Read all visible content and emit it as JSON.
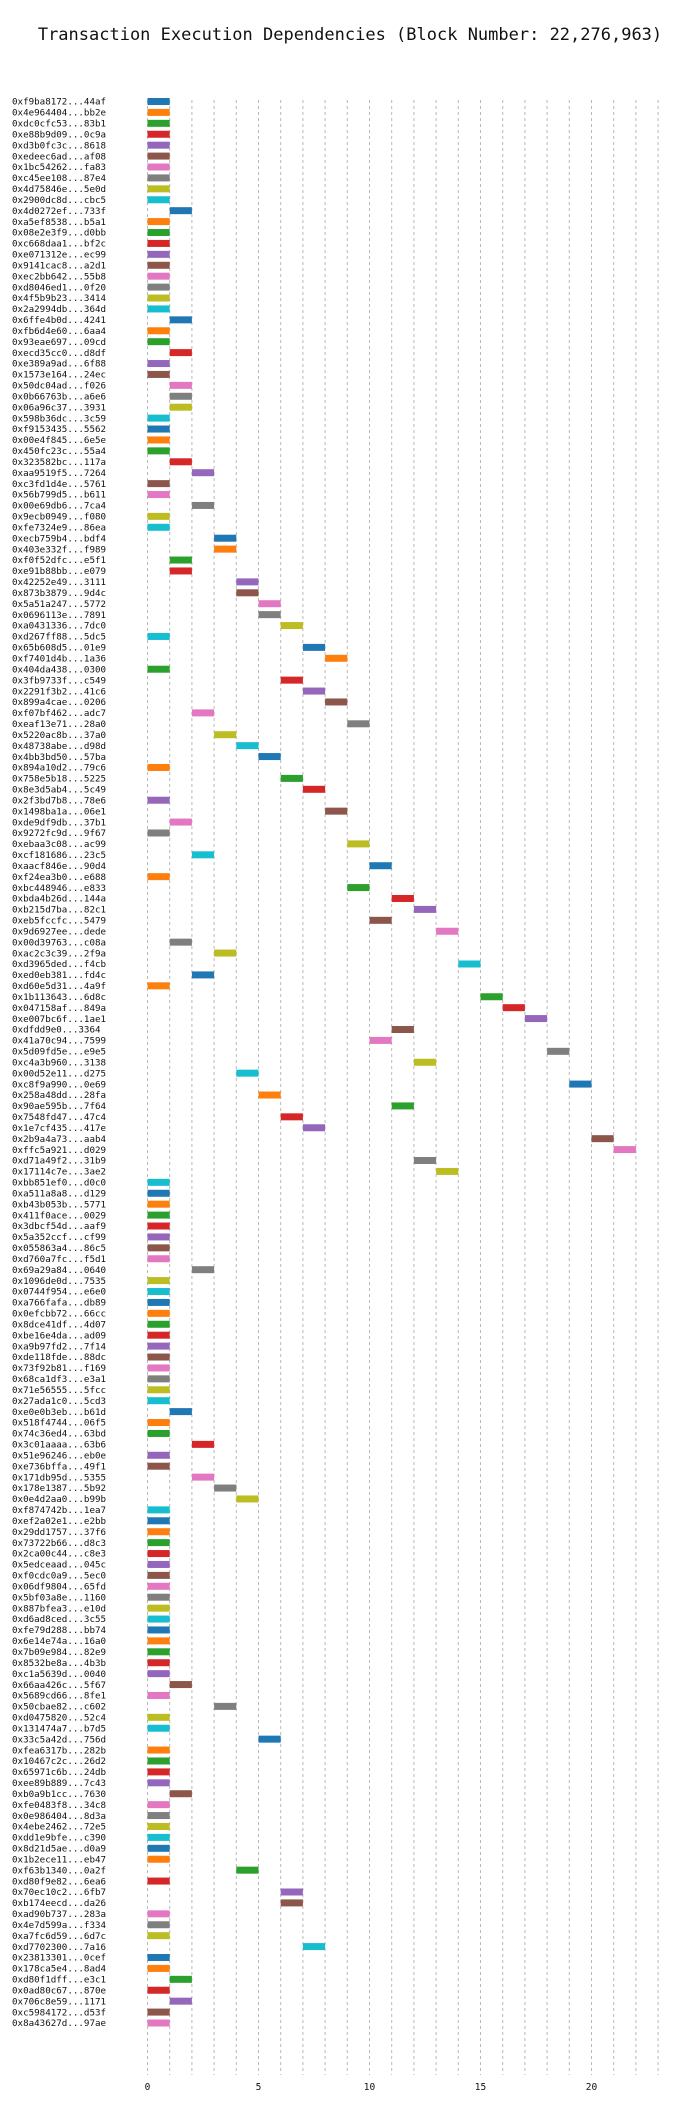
{
  "chart_data": {
    "type": "gantt",
    "title": "Transaction Execution Dependencies (Block Number: 22,276,963)",
    "xlabel": "",
    "ylabel": "",
    "xlim": [
      -0.6,
      23
    ],
    "xticks": [
      0,
      5,
      10,
      15,
      20
    ],
    "grid": "x dashed vertical",
    "bar_width": 1,
    "palette": [
      "#1f77b4",
      "#ff7f0e",
      "#2ca02c",
      "#d62728",
      "#9467bd",
      "#8c564b",
      "#e377c2",
      "#7f7f7f",
      "#bcbd22",
      "#17becf"
    ],
    "transactions": [
      {
        "label": "0xf9ba8172...44af",
        "start": 0
      },
      {
        "label": "0x4e964404...bb2e",
        "start": 0
      },
      {
        "label": "0xdc0cfc53...83b1",
        "start": 0
      },
      {
        "label": "0xe88b9d09...0c9a",
        "start": 0
      },
      {
        "label": "0xd3b0fc3c...8618",
        "start": 0
      },
      {
        "label": "0xedeec6ad...af08",
        "start": 0
      },
      {
        "label": "0x1bc54262...fa83",
        "start": 0
      },
      {
        "label": "0xc45ee108...87e4",
        "start": 0
      },
      {
        "label": "0x4d75846e...5e0d",
        "start": 0
      },
      {
        "label": "0x2900dc8d...cbc5",
        "start": 0
      },
      {
        "label": "0x4d0272ef...733f",
        "start": 1
      },
      {
        "label": "0xa5ef8538...b5a1",
        "start": 0
      },
      {
        "label": "0x08e2e3f9...d0bb",
        "start": 0
      },
      {
        "label": "0xc668daa1...bf2c",
        "start": 0
      },
      {
        "label": "0xe071312e...ec99",
        "start": 0
      },
      {
        "label": "0x9141cac8...a2d1",
        "start": 0
      },
      {
        "label": "0xec2bb642...55b8",
        "start": 0
      },
      {
        "label": "0xd8046ed1...0f20",
        "start": 0
      },
      {
        "label": "0x4f5b9b23...3414",
        "start": 0
      },
      {
        "label": "0x2a2994db...364d",
        "start": 0
      },
      {
        "label": "0x6ffe4b0d...4241",
        "start": 1
      },
      {
        "label": "0xfb6d4e60...6aa4",
        "start": 0
      },
      {
        "label": "0x93eae697...09cd",
        "start": 0
      },
      {
        "label": "0xecd35cc0...d8df",
        "start": 1
      },
      {
        "label": "0xe389a9ad...6f88",
        "start": 0
      },
      {
        "label": "0x1573e164...24ec",
        "start": 0
      },
      {
        "label": "0x50dc04ad...f026",
        "start": 1
      },
      {
        "label": "0x0b66763b...a6e6",
        "start": 1
      },
      {
        "label": "0x06a96c37...3931",
        "start": 1
      },
      {
        "label": "0x598b36dc...3c59",
        "start": 0
      },
      {
        "label": "0xf9153435...5562",
        "start": 0
      },
      {
        "label": "0x00e4f845...6e5e",
        "start": 0
      },
      {
        "label": "0x450fc23c...55a4",
        "start": 0
      },
      {
        "label": "0x323582bc...117a",
        "start": 1
      },
      {
        "label": "0xaa9519f5...7264",
        "start": 2
      },
      {
        "label": "0xc3fd1d4e...5761",
        "start": 0
      },
      {
        "label": "0x56b799d5...b611",
        "start": 0
      },
      {
        "label": "0x00e69db6...7ca4",
        "start": 2
      },
      {
        "label": "0x9ecb0949...f080",
        "start": 0
      },
      {
        "label": "0xfe7324e9...86ea",
        "start": 0
      },
      {
        "label": "0xecb759b4...bdf4",
        "start": 3
      },
      {
        "label": "0x403e332f...f989",
        "start": 3
      },
      {
        "label": "0xf0f52dfc...e5f1",
        "start": 1
      },
      {
        "label": "0xe91b88bb...e079",
        "start": 1
      },
      {
        "label": "0x42252e49...3111",
        "start": 4
      },
      {
        "label": "0x873b3879...9d4c",
        "start": 4
      },
      {
        "label": "0x5a51a247...5772",
        "start": 5
      },
      {
        "label": "0x0696113e...7891",
        "start": 5
      },
      {
        "label": "0xa0431336...7dc0",
        "start": 6
      },
      {
        "label": "0xd267ff88...5dc5",
        "start": 0
      },
      {
        "label": "0x65b608d5...01e9",
        "start": 7
      },
      {
        "label": "0xf7401d4b...1a36",
        "start": 8
      },
      {
        "label": "0x404da438...0300",
        "start": 0
      },
      {
        "label": "0x3fb9733f...c549",
        "start": 6
      },
      {
        "label": "0x2291f3b2...41c6",
        "start": 7
      },
      {
        "label": "0x899a4cae...0206",
        "start": 8
      },
      {
        "label": "0xf07bf462...adc7",
        "start": 2
      },
      {
        "label": "0xeaf13e71...28a0",
        "start": 9
      },
      {
        "label": "0x5220ac8b...37a0",
        "start": 3
      },
      {
        "label": "0x48738abe...d98d",
        "start": 4
      },
      {
        "label": "0x4bb3bd50...57ba",
        "start": 5
      },
      {
        "label": "0x894a10d2...79c6",
        "start": 0
      },
      {
        "label": "0x758e5b18...5225",
        "start": 6
      },
      {
        "label": "0x8e3d5ab4...5c49",
        "start": 7
      },
      {
        "label": "0x2f3bd7b8...78e6",
        "start": 0
      },
      {
        "label": "0x1498ba1a...06e1",
        "start": 8
      },
      {
        "label": "0xde9df9db...37b1",
        "start": 1
      },
      {
        "label": "0x9272fc9d...9f67",
        "start": 0
      },
      {
        "label": "0xebaa3c08...ac99",
        "start": 9
      },
      {
        "label": "0xcf181686...23c5",
        "start": 2
      },
      {
        "label": "0xaacf846e...90d4",
        "start": 10
      },
      {
        "label": "0xf24ea3b0...e688",
        "start": 0
      },
      {
        "label": "0xbc448946...e833",
        "start": 9
      },
      {
        "label": "0xbda4b26d...144a",
        "start": 11
      },
      {
        "label": "0xb215d7ba...82c1",
        "start": 12
      },
      {
        "label": "0xeb5fccfc...5479",
        "start": 10
      },
      {
        "label": "0x9d6927ee...dede",
        "start": 13
      },
      {
        "label": "0x00d39763...c08a",
        "start": 1
      },
      {
        "label": "0xac2c3c39...2f9a",
        "start": 3
      },
      {
        "label": "0xd3965ded...f4cb",
        "start": 14
      },
      {
        "label": "0xed0eb381...fd4c",
        "start": 2
      },
      {
        "label": "0xd60e5d31...4a9f",
        "start": 0
      },
      {
        "label": "0x1b113643...6d8c",
        "start": 15
      },
      {
        "label": "0x047158af...849a",
        "start": 16
      },
      {
        "label": "0xe007bc6f...1ae1",
        "start": 17
      },
      {
        "label": "0xdfdd9e0...3364",
        "start": 11
      },
      {
        "label": "0x41a70c94...7599",
        "start": 10
      },
      {
        "label": "0x5d09fd5e...e9e5",
        "start": 18
      },
      {
        "label": "0xc4a3b960...3138",
        "start": 12
      },
      {
        "label": "0x00d52e11...d275",
        "start": 4
      },
      {
        "label": "0xc8f9a990...0e69",
        "start": 19
      },
      {
        "label": "0x258a48dd...28fa",
        "start": 5
      },
      {
        "label": "0x90ae595b...7f64",
        "start": 11
      },
      {
        "label": "0x7548fd47...47c4",
        "start": 6
      },
      {
        "label": "0x1e7cf435...417e",
        "start": 7
      },
      {
        "label": "0x2b9a4a73...aab4",
        "start": 20
      },
      {
        "label": "0xffc5a921...d029",
        "start": 21
      },
      {
        "label": "0xd71a49f2...31b9",
        "start": 12
      },
      {
        "label": "0x17114c7e...3ae2",
        "start": 13
      },
      {
        "label": "0xbb851ef0...d0c0",
        "start": 0
      },
      {
        "label": "0xa511a8a8...d129",
        "start": 0
      },
      {
        "label": "0xb43b053b...5771",
        "start": 0
      },
      {
        "label": "0x411f0ace...0029",
        "start": 0
      },
      {
        "label": "0x3dbcf54d...aaf9",
        "start": 0
      },
      {
        "label": "0x5a352ccf...cf99",
        "start": 0
      },
      {
        "label": "0x055863a4...86c5",
        "start": 0
      },
      {
        "label": "0xd760a7fc...f5d1",
        "start": 0
      },
      {
        "label": "0x69a29a84...0640",
        "start": 2
      },
      {
        "label": "0x1096de0d...7535",
        "start": 0
      },
      {
        "label": "0x0744f954...e6e0",
        "start": 0
      },
      {
        "label": "0xa766fafa...db89",
        "start": 0
      },
      {
        "label": "0x0efcbb72...66cc",
        "start": 0
      },
      {
        "label": "0x8dce41df...4d07",
        "start": 0
      },
      {
        "label": "0xbe16e4da...ad09",
        "start": 0
      },
      {
        "label": "0xa9b97fd2...7f14",
        "start": 0
      },
      {
        "label": "0xde118fde...88dc",
        "start": 0
      },
      {
        "label": "0x73f92b81...f169",
        "start": 0
      },
      {
        "label": "0x68ca1df3...e3a1",
        "start": 0
      },
      {
        "label": "0x71e56555...5fcc",
        "start": 0
      },
      {
        "label": "0x27ada1c0...5cd3",
        "start": 0
      },
      {
        "label": "0xe0e0b3eb...b61d",
        "start": 1
      },
      {
        "label": "0x518f4744...06f5",
        "start": 0
      },
      {
        "label": "0x74c36ed4...63bd",
        "start": 0
      },
      {
        "label": "0x3c01aaaa...63b6",
        "start": 2
      },
      {
        "label": "0x51e96246...eb0e",
        "start": 0
      },
      {
        "label": "0xe736bffa...49f1",
        "start": 0
      },
      {
        "label": "0x171db95d...5355",
        "start": 2
      },
      {
        "label": "0x178e1387...5b92",
        "start": 3
      },
      {
        "label": "0x0e4d2aa0...b99b",
        "start": 4
      },
      {
        "label": "0xf874742b...1ea7",
        "start": 0
      },
      {
        "label": "0xef2a02e1...e2bb",
        "start": 0
      },
      {
        "label": "0x29dd1757...37f6",
        "start": 0
      },
      {
        "label": "0x73722b66...d8c3",
        "start": 0
      },
      {
        "label": "0x2ca00c44...c8e3",
        "start": 0
      },
      {
        "label": "0x5edceaad...045c",
        "start": 0
      },
      {
        "label": "0xf0cdc0a9...5ec0",
        "start": 0
      },
      {
        "label": "0x06df9804...65fd",
        "start": 0
      },
      {
        "label": "0x5bf03a8e...1160",
        "start": 0
      },
      {
        "label": "0x887bfea3...e10d",
        "start": 0
      },
      {
        "label": "0xd6ad8ced...3c55",
        "start": 0
      },
      {
        "label": "0xfe79d288...bb74",
        "start": 0
      },
      {
        "label": "0x6e14e74a...16a0",
        "start": 0
      },
      {
        "label": "0x7b09e984...82e9",
        "start": 0
      },
      {
        "label": "0x8532be8a...4b3b",
        "start": 0
      },
      {
        "label": "0xc1a5639d...0040",
        "start": 0
      },
      {
        "label": "0x66aa426c...5f67",
        "start": 1
      },
      {
        "label": "0x5689cd66...8fe1",
        "start": 0
      },
      {
        "label": "0x50cbae82...c602",
        "start": 3
      },
      {
        "label": "0xd0475820...52c4",
        "start": 0
      },
      {
        "label": "0x131474a7...b7d5",
        "start": 0
      },
      {
        "label": "0x33c5a42d...756d",
        "start": 5
      },
      {
        "label": "0xfea6317b...282b",
        "start": 0
      },
      {
        "label": "0x10467c2c...26d2",
        "start": 0
      },
      {
        "label": "0x65971c6b...24db",
        "start": 0
      },
      {
        "label": "0xee89b889...7c43",
        "start": 0
      },
      {
        "label": "0xb0a9b1cc...7630",
        "start": 1
      },
      {
        "label": "0xfe0483f8...34c8",
        "start": 0
      },
      {
        "label": "0x0e986404...8d3a",
        "start": 0
      },
      {
        "label": "0x4ebe2462...72e5",
        "start": 0
      },
      {
        "label": "0xdd1e9bfe...c390",
        "start": 0
      },
      {
        "label": "0x8d21d5ae...d0a9",
        "start": 0
      },
      {
        "label": "0x1b2ece11...eb47",
        "start": 0
      },
      {
        "label": "0xf63b1340...0a2f",
        "start": 4
      },
      {
        "label": "0xd80f9e82...6ea6",
        "start": 0
      },
      {
        "label": "0x70ec10c2...6fb7",
        "start": 6
      },
      {
        "label": "0xb174eecd...da26",
        "start": 6
      },
      {
        "label": "0xad90b737...283a",
        "start": 0
      },
      {
        "label": "0x4e7d599a...f334",
        "start": 0
      },
      {
        "label": "0xa7fc6d59...6d7c",
        "start": 0
      },
      {
        "label": "0xd7702300...7a16",
        "start": 7
      },
      {
        "label": "0x23813301...0cef",
        "start": 0
      },
      {
        "label": "0x178ca5e4...8ad4",
        "start": 0
      },
      {
        "label": "0xd80f1dff...e3c1",
        "start": 1
      },
      {
        "label": "0x0ad80c67...870e",
        "start": 0
      },
      {
        "label": "0x706c8e59...1171",
        "start": 1
      },
      {
        "label": "0xc5984172...d53f",
        "start": 0
      },
      {
        "label": "0x8a43627d...97ae",
        "start": 0
      }
    ]
  }
}
